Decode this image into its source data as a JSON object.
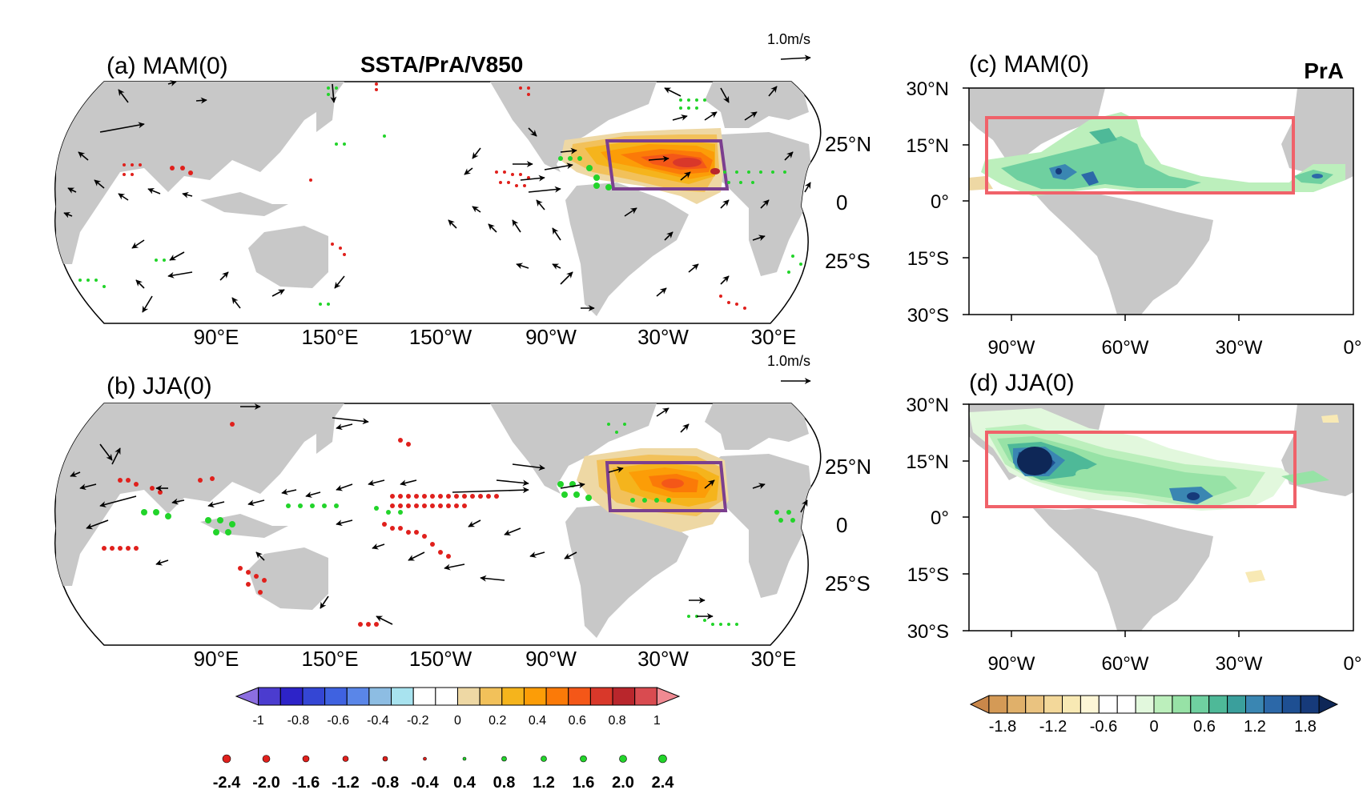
{
  "main_title": "SSTA/PrA/V850",
  "panels": {
    "a": {
      "label": "(a) MAM(0)",
      "ref_vector": "1.0m/s"
    },
    "b": {
      "label": "(b) JJA(0)",
      "ref_vector": "1.0m/s"
    },
    "c": {
      "label": "(c) MAM(0)",
      "var": "PrA"
    },
    "d": {
      "label": "(d) JJA(0)"
    }
  },
  "global_axes": {
    "lon_ticks": [
      "90°E",
      "150°E",
      "150°W",
      "90°W",
      "30°W",
      "30°E"
    ],
    "lat_ticks": [
      "25°N",
      "0",
      "25°S"
    ]
  },
  "regional_axes": {
    "lat_ticks": [
      "30°N",
      "15°N",
      "0°",
      "15°S",
      "30°S"
    ],
    "lon_ticks": [
      "90°W",
      "60°W",
      "30°W",
      "0°"
    ]
  },
  "colorbar_ssta": {
    "labels": [
      "-1",
      "-0.8",
      "-0.6",
      "-0.4",
      "-0.2",
      "0",
      "0.2",
      "0.4",
      "0.6",
      "0.8",
      "1"
    ],
    "colors": [
      "#8c6ee0",
      "#4b3ccf",
      "#2d23c8",
      "#3446d4",
      "#3f62e0",
      "#5a86e8",
      "#8dbde3",
      "#a8e3ef",
      "#ffffff",
      "#ffffff",
      "#eed8a4",
      "#f2c15a",
      "#f5b41c",
      "#fc9d07",
      "#fb7a08",
      "#f45718",
      "#d9382a",
      "#b9262c",
      "#d94b50",
      "#f08a92"
    ]
  },
  "markers_legend": {
    "labels": [
      "-2.4",
      "-2.0",
      "-1.6",
      "-1.2",
      "-0.8",
      "-0.4",
      "0.4",
      "0.8",
      "1.2",
      "1.6",
      "2.0",
      "2.4"
    ],
    "negative_color": "#e0201c",
    "positive_color": "#22d42a"
  },
  "colorbar_pra": {
    "labels": [
      "-1.8",
      "-1.2",
      "-0.6",
      "0",
      "0.6",
      "1.2",
      "1.8"
    ],
    "colors": [
      "#c9874a",
      "#d49a56",
      "#e0b06a",
      "#eac380",
      "#f3d89a",
      "#f8e9b4",
      "#fdf6d6",
      "#ffffff",
      "#ffffff",
      "#e2f8dd",
      "#bcefbc",
      "#97e2a6",
      "#6fd0a0",
      "#4eb998",
      "#3a9f9c",
      "#3a86b2",
      "#2c68a8",
      "#1e4f92",
      "#163a7a",
      "#0e2757"
    ]
  }
}
